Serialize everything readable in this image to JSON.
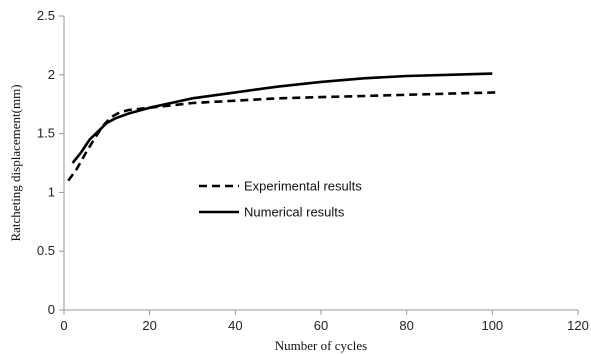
{
  "chart_data": {
    "type": "line",
    "title": "",
    "xlabel": "Number of cycles",
    "ylabel": "Ratcheting displacement(mm)",
    "xlim": [
      0,
      120
    ],
    "ylim": [
      0,
      2.5
    ],
    "xticks": [
      0,
      20,
      40,
      60,
      80,
      100,
      120
    ],
    "yticks": [
      0,
      0.5,
      1,
      1.5,
      2,
      2.5
    ],
    "xtick_labels": [
      "0",
      "20",
      "40",
      "60",
      "80",
      "100",
      "120"
    ],
    "ytick_labels": [
      "0",
      "0.5",
      "1",
      "1.5",
      "2",
      "2.5"
    ],
    "grid": false,
    "legend_position": "center",
    "series": [
      {
        "name": "Experimental results",
        "style": "dashed",
        "color": "#000000",
        "x": [
          1,
          3,
          5,
          7,
          9,
          11,
          13,
          15,
          20,
          25,
          30,
          40,
          50,
          60,
          70,
          80,
          90,
          101
        ],
        "y": [
          1.1,
          1.2,
          1.33,
          1.45,
          1.56,
          1.64,
          1.68,
          1.7,
          1.72,
          1.74,
          1.76,
          1.78,
          1.8,
          1.81,
          1.82,
          1.83,
          1.84,
          1.85
        ]
      },
      {
        "name": "Numerical results",
        "style": "solid",
        "color": "#000000",
        "x": [
          2,
          4,
          6,
          8,
          10,
          12,
          15,
          20,
          25,
          30,
          40,
          50,
          60,
          70,
          80,
          90,
          100
        ],
        "y": [
          1.25,
          1.34,
          1.45,
          1.52,
          1.59,
          1.63,
          1.67,
          1.72,
          1.76,
          1.8,
          1.85,
          1.9,
          1.94,
          1.97,
          1.99,
          2.0,
          2.01
        ]
      }
    ]
  }
}
